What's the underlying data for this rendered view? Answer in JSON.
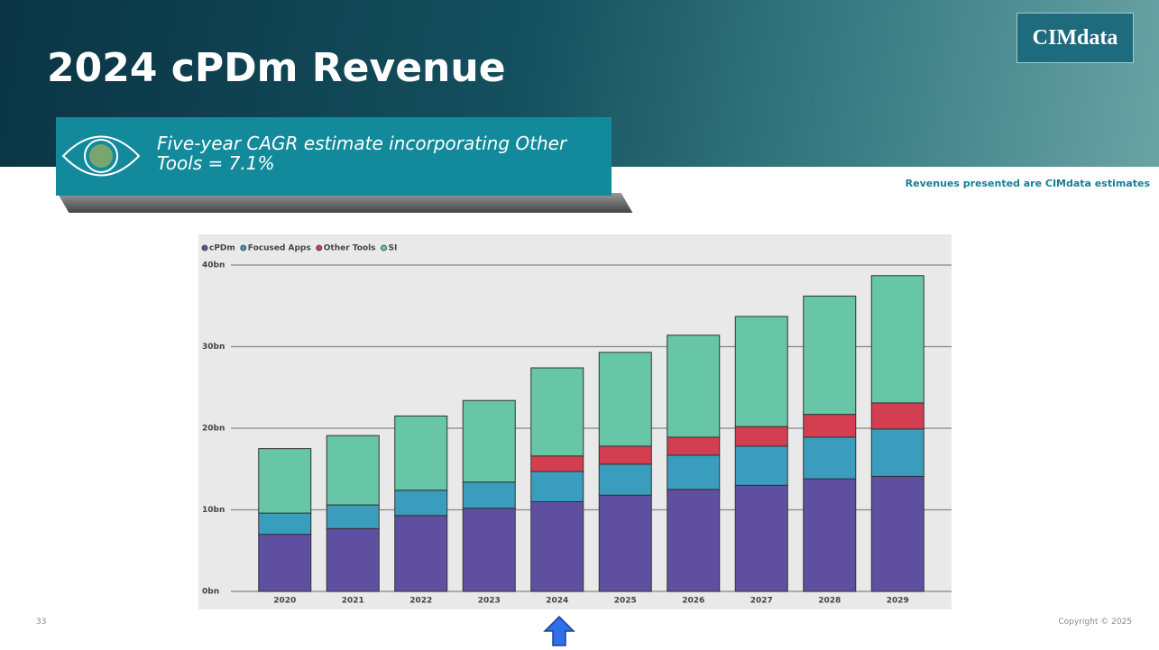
{
  "slide": {
    "title": "2024 cPDm Revenue",
    "logo": "CIMdata",
    "callout": "Five-year CAGR estimate incorporating Other Tools = 7.1%",
    "note": "Revenues presented are CIMdata estimates",
    "page_number": "33",
    "copyright": "Copyright © 2025"
  },
  "chart_data": {
    "type": "stacked_bar",
    "categories": [
      "2020",
      "2021",
      "2022",
      "2023",
      "2024",
      "2025",
      "2026",
      "2027",
      "2028",
      "2029"
    ],
    "series": [
      {
        "name": "cPDm",
        "color": "#5f4fa0",
        "values": [
          7.0,
          7.7,
          9.3,
          10.2,
          11.0,
          11.8,
          12.5,
          13.0,
          13.8,
          14.1
        ]
      },
      {
        "name": "Focused Apps",
        "color": "#3a9dbd",
        "values": [
          2.6,
          2.9,
          3.1,
          3.2,
          3.7,
          3.8,
          4.2,
          4.8,
          5.1,
          5.8
        ]
      },
      {
        "name": "Other Tools",
        "color": "#d33f50",
        "values": [
          0,
          0,
          0,
          0,
          1.9,
          2.2,
          2.2,
          2.4,
          2.8,
          3.2
        ]
      },
      {
        "name": "SI",
        "color": "#66c6a6",
        "values": [
          7.9,
          8.5,
          9.1,
          10.0,
          10.8,
          11.5,
          12.5,
          13.5,
          14.5,
          15.6
        ]
      }
    ],
    "ylim": [
      0,
      40
    ],
    "yticks": [
      {
        "value": 0,
        "label": "0bn"
      },
      {
        "value": 10,
        "label": "10bn"
      },
      {
        "value": 20,
        "label": "20bn"
      },
      {
        "value": 30,
        "label": "30bn"
      },
      {
        "value": 40,
        "label": "40bn"
      }
    ],
    "grid": true
  }
}
